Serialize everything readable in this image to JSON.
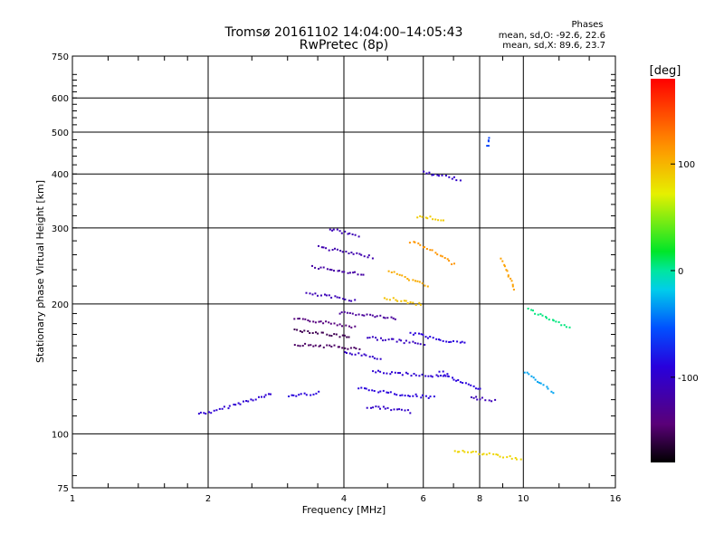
{
  "chart_data": {
    "type": "scatter",
    "title": "Tromsø 20161102 14:04:00–14:05:43",
    "subtitle": "RwPretec (8p)",
    "xlabel": "Frequency [MHz]",
    "ylabel": "Stationary phase Virtual Height [km]",
    "xscale": "log",
    "yscale": "log",
    "xlim": [
      1,
      16
    ],
    "ylim": [
      75,
      750
    ],
    "xticks": [
      1,
      2,
      4,
      6,
      8,
      10,
      16
    ],
    "yticks": [
      75,
      100,
      200,
      300,
      400,
      500,
      600,
      750
    ],
    "x_gridlines": [
      2,
      4,
      6,
      8,
      10
    ],
    "y_gridlines": [
      100,
      200,
      300,
      400,
      500,
      600
    ],
    "colorbar": {
      "label": "[deg]",
      "ticks": [
        100,
        0,
        -100
      ],
      "range": [
        -180,
        180
      ],
      "colormap": "rainbow"
    },
    "stats": {
      "header": "Phases",
      "o_line": "mean, sd,O: -92.6, 22.6",
      "x_line": "mean, sd,X:  89.6, 23.7"
    },
    "traces": [
      {
        "x": [
          1.9,
          2.05,
          2.2,
          2.45,
          2.75
        ],
        "y": [
          112,
          113,
          116,
          120,
          124
        ],
        "phase": -95
      },
      {
        "x": [
          3.0,
          3.25,
          3.5
        ],
        "y": [
          123,
          124,
          125
        ],
        "phase": -90
      },
      {
        "x": [
          3.1,
          3.4,
          3.8,
          4.1
        ],
        "y": [
          175,
          173,
          170,
          168
        ],
        "phase": -155
      },
      {
        "x": [
          3.1,
          3.5,
          3.9,
          4.2
        ],
        "y": [
          185,
          183,
          180,
          178
        ],
        "phase": -140
      },
      {
        "x": [
          3.1,
          3.4,
          3.8,
          4.3
        ],
        "y": [
          162,
          161,
          160,
          158
        ],
        "phase": -150
      },
      {
        "x": [
          3.3,
          3.6,
          3.9,
          4.2
        ],
        "y": [
          212,
          210,
          207,
          205
        ],
        "phase": -110
      },
      {
        "x": [
          3.4,
          3.7,
          4.0,
          4.4
        ],
        "y": [
          245,
          242,
          238,
          236
        ],
        "phase": -120
      },
      {
        "x": [
          3.5,
          3.8,
          4.2,
          4.6
        ],
        "y": [
          272,
          268,
          262,
          258
        ],
        "phase": -115
      },
      {
        "x": [
          3.7,
          4.0,
          4.3
        ],
        "y": [
          300,
          294,
          288
        ],
        "phase": -110
      },
      {
        "x": [
          3.9,
          4.3,
          4.8,
          5.2
        ],
        "y": [
          192,
          190,
          188,
          185
        ],
        "phase": -125
      },
      {
        "x": [
          4.0,
          4.4,
          4.8
        ],
        "y": [
          155,
          153,
          150
        ],
        "phase": -100
      },
      {
        "x": [
          4.5,
          5.0,
          5.5,
          6.0
        ],
        "y": [
          168,
          166,
          164,
          162
        ],
        "phase": -105
      },
      {
        "x": [
          4.6,
          5.1,
          5.6,
          6.2,
          6.8
        ],
        "y": [
          140,
          139,
          138,
          137,
          136
        ],
        "phase": -95
      },
      {
        "x": [
          4.3,
          4.8,
          5.3,
          5.8,
          6.3
        ],
        "y": [
          128,
          126,
          124,
          123,
          122
        ],
        "phase": -90
      },
      {
        "x": [
          4.5,
          5.0,
          5.6
        ],
        "y": [
          116,
          115,
          113
        ],
        "phase": -100
      },
      {
        "x": [
          5.6,
          6.2,
          6.8,
          7.4
        ],
        "y": [
          172,
          168,
          165,
          163
        ],
        "phase": -90
      },
      {
        "x": [
          5.0,
          5.5,
          6.1
        ],
        "y": [
          240,
          230,
          222
        ],
        "phase": 105
      },
      {
        "x": [
          5.6,
          6.1,
          6.6,
          7.0
        ],
        "y": [
          280,
          270,
          258,
          248
        ],
        "phase": 115
      },
      {
        "x": [
          4.9,
          5.4,
          5.9
        ],
        "y": [
          208,
          204,
          200
        ],
        "phase": 95
      },
      {
        "x": [
          6.0,
          6.4,
          6.8,
          7.2
        ],
        "y": [
          405,
          400,
          395,
          390
        ],
        "phase": -100
      },
      {
        "x": [
          5.8,
          6.2,
          6.6
        ],
        "y": [
          320,
          318,
          315
        ],
        "phase": 90
      },
      {
        "x": [
          6.5,
          7.0,
          7.5,
          8.0
        ],
        "y": [
          140,
          135,
          130,
          128
        ],
        "phase": -90
      },
      {
        "x": [
          7.6,
          8.1,
          8.6
        ],
        "y": [
          122,
          121,
          120
        ],
        "phase": -110
      },
      {
        "x": [
          7.0,
          7.6,
          8.4,
          9.0,
          9.8
        ],
        "y": [
          92,
          91,
          90,
          89,
          88
        ],
        "phase": 85
      },
      {
        "x": [
          8.9,
          9.2,
          9.5
        ],
        "y": [
          255,
          235,
          218
        ],
        "phase": 110
      },
      {
        "x": [
          10.2,
          11.0,
          11.8,
          12.6
        ],
        "y": [
          195,
          188,
          182,
          178
        ],
        "phase": 5
      },
      {
        "x": [
          10.0,
          10.8,
          11.6
        ],
        "y": [
          140,
          132,
          125
        ],
        "phase": -30
      },
      {
        "x": [
          8.3,
          8.35
        ],
        "y": [
          465,
          485
        ],
        "phase": -60
      }
    ]
  }
}
